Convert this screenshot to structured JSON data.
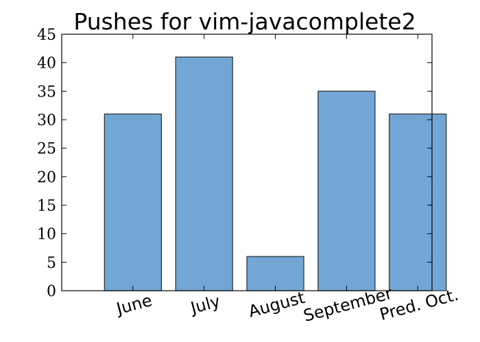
{
  "chart_data": {
    "type": "bar",
    "title": "Pushes for vim-javacomplete2",
    "xlabel": "",
    "ylabel": "",
    "categories": [
      "June",
      "July",
      "August",
      "September",
      "Pred. Oct."
    ],
    "values": [
      31,
      41,
      6,
      35,
      31
    ],
    "ylim": [
      0,
      45
    ],
    "yticks": [
      0,
      5,
      10,
      15,
      20,
      25,
      30,
      35,
      40,
      45
    ],
    "grid": false,
    "legend": "none",
    "bar_color": "#72a6d5",
    "bar_edge_color": "#2b2b2b"
  }
}
